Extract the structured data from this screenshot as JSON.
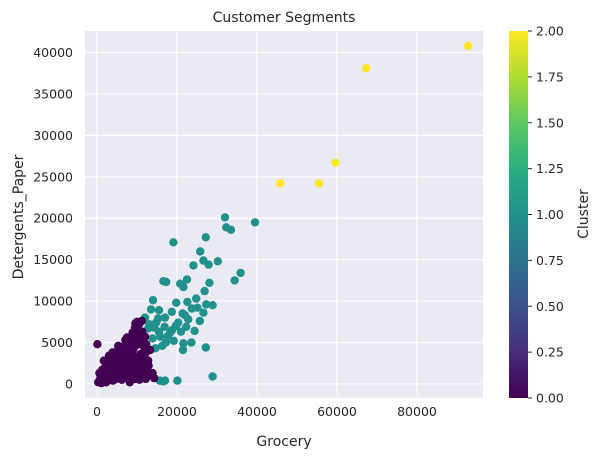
{
  "chart_data": {
    "type": "scatter",
    "title": "Customer Segments",
    "xlabel": "Grocery",
    "ylabel": "Detergents_Paper",
    "xlim": [
      -3000,
      96500
    ],
    "ylim": [
      -1700,
      42600
    ],
    "xticks": [
      0,
      20000,
      40000,
      60000,
      80000
    ],
    "yticks": [
      0,
      5000,
      10000,
      15000,
      20000,
      25000,
      30000,
      35000,
      40000
    ],
    "grid": true,
    "colorbar": {
      "label": "Cluster",
      "range": [
        0.0,
        2.0
      ],
      "ticks": [
        "0.00",
        "0.25",
        "0.50",
        "0.75",
        "1.00",
        "1.25",
        "1.50",
        "1.75",
        "2.00"
      ],
      "colormap": "viridis"
    },
    "series": [
      {
        "cluster": 2,
        "color": "#fde725",
        "points": [
          [
            92800,
            40800
          ],
          [
            67300,
            38100
          ],
          [
            59600,
            26700
          ],
          [
            55500,
            24200
          ],
          [
            45800,
            24200
          ]
        ]
      },
      {
        "cluster": 1,
        "color": "#21918c",
        "points": [
          [
            32000,
            20100
          ],
          [
            39500,
            19500
          ],
          [
            32300,
            18900
          ],
          [
            33500,
            18600
          ],
          [
            19100,
            17100
          ],
          [
            27200,
            17700
          ],
          [
            25800,
            16000
          ],
          [
            35900,
            13400
          ],
          [
            34400,
            12500
          ],
          [
            26600,
            14900
          ],
          [
            27900,
            14400
          ],
          [
            24100,
            14300
          ],
          [
            30200,
            14800
          ],
          [
            22500,
            12600
          ],
          [
            20800,
            12100
          ],
          [
            17300,
            12300
          ],
          [
            16600,
            12400
          ],
          [
            28100,
            12200
          ],
          [
            21600,
            11700
          ],
          [
            26900,
            11200
          ],
          [
            24800,
            10300
          ],
          [
            22600,
            9900
          ],
          [
            19800,
            9800
          ],
          [
            14000,
            10100
          ],
          [
            27300,
            9600
          ],
          [
            25100,
            9200
          ],
          [
            28900,
            9500
          ],
          [
            22000,
            8300
          ],
          [
            17000,
            8000
          ],
          [
            15500,
            8900
          ],
          [
            15300,
            7900
          ],
          [
            18700,
            8700
          ],
          [
            21400,
            8500
          ],
          [
            23700,
            9100
          ],
          [
            26600,
            8600
          ],
          [
            19700,
            7000
          ],
          [
            16900,
            6900
          ],
          [
            20300,
            7400
          ],
          [
            22800,
            7800
          ],
          [
            25700,
            7600
          ],
          [
            24400,
            6400
          ],
          [
            21000,
            6300
          ],
          [
            18300,
            6200
          ],
          [
            15500,
            6300
          ],
          [
            14300,
            6800
          ],
          [
            13100,
            7200
          ],
          [
            12000,
            8000
          ],
          [
            13500,
            9000
          ],
          [
            13900,
            5500
          ],
          [
            15800,
            5700
          ],
          [
            17700,
            5800
          ],
          [
            19200,
            5200
          ],
          [
            21600,
            4900
          ],
          [
            23600,
            5000
          ],
          [
            17200,
            5000
          ],
          [
            21500,
            4100
          ],
          [
            27200,
            4400
          ],
          [
            15700,
            400
          ],
          [
            16500,
            300
          ],
          [
            17000,
            400
          ],
          [
            20100,
            400
          ],
          [
            28900,
            900
          ],
          [
            14600,
            4300
          ],
          [
            16300,
            4600
          ],
          [
            18800,
            6500
          ],
          [
            22300,
            6900
          ],
          [
            14800,
            7400
          ],
          [
            12800,
            6700
          ]
        ]
      },
      {
        "cluster": 0,
        "color": "#440154",
        "points": [
          [
            100,
            4800
          ],
          [
            7100,
            5300
          ],
          [
            8300,
            5500
          ],
          [
            10400,
            6100
          ],
          [
            11300,
            6300
          ],
          [
            10500,
            7200
          ],
          [
            9600,
            7300
          ],
          [
            11200,
            7600
          ],
          [
            3000,
            3400
          ],
          [
            1700,
            2800
          ],
          [
            5200,
            4000
          ],
          [
            6100,
            4400
          ],
          [
            9100,
            4200
          ],
          [
            11800,
            4400
          ],
          [
            12100,
            3700
          ],
          [
            12800,
            2800
          ],
          [
            13400,
            1100
          ],
          [
            10600,
            500
          ],
          [
            8200,
            200
          ],
          [
            6600,
            1300
          ],
          [
            4200,
            1500
          ],
          [
            3100,
            900
          ],
          [
            2300,
            200
          ],
          [
            1500,
            400
          ],
          [
            900,
            800
          ],
          [
            600,
            1300
          ],
          [
            300,
            200
          ],
          [
            1100,
            100
          ],
          [
            2600,
            1800
          ],
          [
            3500,
            2300
          ],
          [
            4400,
            2700
          ],
          [
            5400,
            3100
          ],
          [
            6300,
            3400
          ],
          [
            7200,
            3800
          ],
          [
            8100,
            4100
          ],
          [
            9000,
            3500
          ],
          [
            9800,
            3000
          ],
          [
            10700,
            2400
          ],
          [
            11600,
            2000
          ],
          [
            12400,
            1500
          ],
          [
            12900,
            2200
          ],
          [
            4800,
            600
          ],
          [
            5700,
            900
          ],
          [
            7000,
            1100
          ],
          [
            7900,
            600
          ],
          [
            8900,
            1600
          ],
          [
            9700,
            2000
          ],
          [
            10300,
            1400
          ],
          [
            11500,
            900
          ],
          [
            5100,
            1800
          ],
          [
            6400,
            2200
          ],
          [
            7400,
            2600
          ],
          [
            8600,
            2900
          ],
          [
            9400,
            3300
          ],
          [
            10900,
            3600
          ],
          [
            11900,
            3100
          ],
          [
            3800,
            1200
          ],
          [
            2900,
            500
          ],
          [
            1800,
            1300
          ],
          [
            2000,
            2000
          ],
          [
            3300,
            2900
          ],
          [
            4600,
            3400
          ],
          [
            6800,
            4600
          ],
          [
            7700,
            4800
          ],
          [
            8800,
            5000
          ],
          [
            9900,
            4700
          ],
          [
            10700,
            4900
          ],
          [
            11400,
            5200
          ],
          [
            12300,
            4800
          ],
          [
            13300,
            4100
          ],
          [
            12000,
            5700
          ],
          [
            10100,
            5700
          ],
          [
            5900,
            2700
          ],
          [
            6900,
            3000
          ],
          [
            8300,
            3500
          ],
          [
            9300,
            2500
          ],
          [
            10500,
            1000
          ],
          [
            11700,
            2700
          ],
          [
            4000,
            400
          ],
          [
            6200,
            500
          ],
          [
            7500,
            1900
          ],
          [
            8500,
            1300
          ],
          [
            9600,
            600
          ],
          [
            11000,
            1800
          ],
          [
            12200,
            600
          ],
          [
            2400,
            900
          ],
          [
            3600,
            1700
          ],
          [
            4300,
            2100
          ],
          [
            5500,
            1300
          ],
          [
            6600,
            1700
          ],
          [
            7900,
            2300
          ],
          [
            8900,
            2100
          ],
          [
            9900,
            1200
          ],
          [
            10900,
            2900
          ],
          [
            11800,
            3400
          ],
          [
            1300,
            1700
          ],
          [
            700,
            500
          ],
          [
            13900,
            1300
          ],
          [
            14300,
            700
          ],
          [
            3900,
            3800
          ],
          [
            5300,
            4600
          ],
          [
            6000,
            3700
          ],
          [
            7500,
            5600
          ],
          [
            8900,
            6200
          ],
          [
            9500,
            6800
          ],
          [
            10000,
            7500
          ]
        ]
      }
    ]
  }
}
